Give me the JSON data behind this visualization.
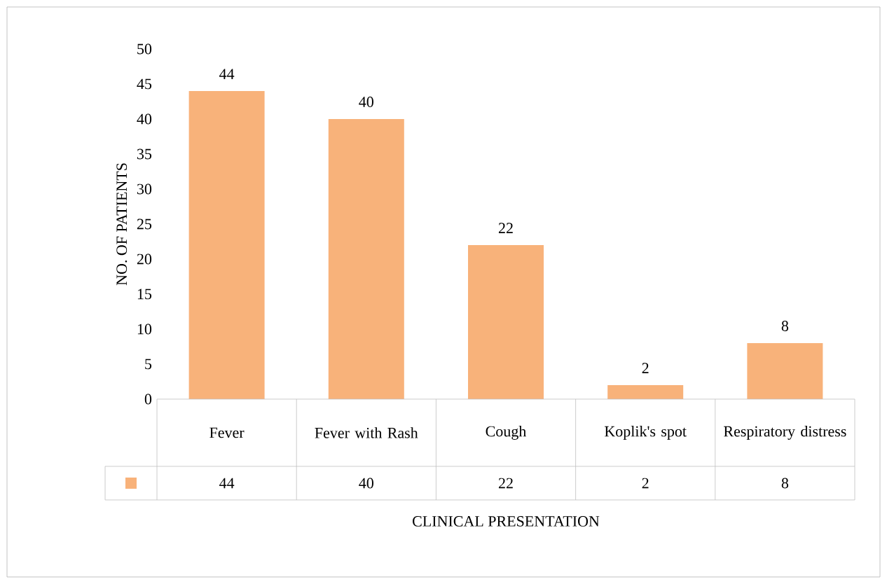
{
  "chart_data": {
    "type": "bar",
    "categories": [
      "Fever",
      "Fever with Rash",
      "Cough",
      "Koplik's spot",
      "Respiratory distress"
    ],
    "values": [
      44,
      40,
      22,
      2,
      8
    ],
    "color": "#f8b27a",
    "xlabel": "CLINICAL PRESENTATION",
    "ylabel": "NO. OF PATIENTS",
    "ylim": [
      0,
      50
    ],
    "yticks": [
      0,
      5,
      10,
      15,
      20,
      25,
      30,
      35,
      40,
      45,
      50
    ],
    "value_labels": [
      "44",
      "40",
      "22",
      "2",
      "8"
    ]
  }
}
